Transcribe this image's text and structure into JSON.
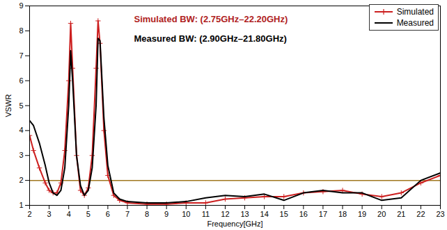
{
  "chart_data": {
    "type": "line",
    "x_label": "Frequency[GHz]",
    "y_label": "VSWR",
    "x": [
      2,
      2.2,
      2.5,
      2.8,
      3,
      3.2,
      3.4,
      3.6,
      3.8,
      4,
      4.1,
      4.2,
      4.4,
      4.6,
      4.8,
      5,
      5.2,
      5.4,
      5.5,
      5.6,
      5.8,
      6,
      6.3,
      6.6,
      7,
      8,
      9,
      10,
      11,
      12,
      13,
      14,
      15,
      16,
      17,
      18,
      19,
      20,
      21,
      22,
      23
    ],
    "series": [
      {
        "name": "Simulated",
        "color": "#cc1f1f",
        "marker": "plus",
        "values": [
          3.8,
          3.2,
          2.5,
          1.9,
          1.6,
          1.5,
          1.5,
          1.9,
          3.2,
          6.0,
          8.3,
          6.5,
          3.0,
          1.6,
          1.4,
          1.7,
          3.0,
          6.5,
          8.4,
          7.5,
          4.0,
          2.2,
          1.4,
          1.2,
          1.1,
          1.05,
          1.05,
          1.1,
          1.1,
          1.25,
          1.3,
          1.35,
          1.35,
          1.5,
          1.55,
          1.6,
          1.45,
          1.35,
          1.5,
          1.9,
          2.2
        ]
      },
      {
        "name": "Measured",
        "color": "#000000",
        "values": [
          4.4,
          4.2,
          3.5,
          2.6,
          1.9,
          1.5,
          1.4,
          1.6,
          2.5,
          5.0,
          7.2,
          6.0,
          3.0,
          1.8,
          1.4,
          1.6,
          2.5,
          5.0,
          7.7,
          7.6,
          4.5,
          2.6,
          1.5,
          1.25,
          1.15,
          1.1,
          1.1,
          1.15,
          1.3,
          1.4,
          1.35,
          1.45,
          1.2,
          1.5,
          1.6,
          1.5,
          1.5,
          1.2,
          1.3,
          2.0,
          2.3
        ]
      }
    ],
    "reference_line": {
      "y": 2,
      "color": "#a07820"
    },
    "annotations": [
      {
        "text": "Simulated BW: (2.75GHz–22.20GHz)",
        "color": "#b01e1e"
      },
      {
        "text": "Measured BW: (2.90GHz–21.80GHz)",
        "color": "#000000"
      }
    ],
    "xlim": [
      2,
      23
    ],
    "xticks": [
      2,
      3,
      4,
      5,
      6,
      7,
      8,
      9,
      10,
      11,
      12,
      13,
      14,
      15,
      16,
      17,
      18,
      19,
      20,
      21,
      22,
      23
    ],
    "ylim": [
      1,
      9
    ],
    "yticks": [
      1,
      2,
      3,
      4,
      5,
      6,
      7,
      8,
      9
    ],
    "grid": false,
    "legend": "top-right"
  }
}
